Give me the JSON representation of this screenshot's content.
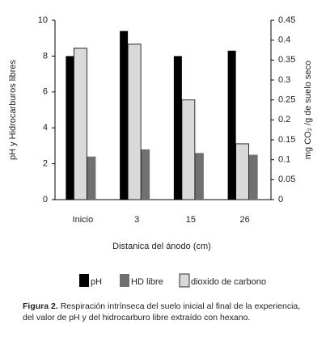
{
  "chart_data": {
    "type": "bar",
    "categories": [
      "Inicio",
      "3",
      "15",
      "26"
    ],
    "series": [
      {
        "name": "pH",
        "color": "#000000",
        "values": [
          8.0,
          9.4,
          8.0,
          8.3
        ]
      },
      {
        "name": "HD  libre",
        "color": "#707070",
        "values": [
          2.4,
          2.8,
          2.6,
          2.5
        ]
      },
      {
        "name": "dioxido de carbono",
        "color": "#d9d9d9",
        "axis": "y2",
        "values": [
          0.38,
          0.39,
          0.25,
          0.14
        ]
      }
    ],
    "ylim": [
      0,
      10
    ],
    "yticks": [
      0,
      2,
      4,
      6,
      8,
      10
    ],
    "y2lim": [
      0,
      0.45
    ],
    "y2ticks": [
      0,
      0.05,
      0.1,
      0.15,
      0.2,
      0.25,
      0.3,
      0.35,
      0.4,
      0.45
    ],
    "y_label": "pH y Hidrocarburos libres",
    "y2_label": "mg CO₂ /g de suelo seco",
    "x_label": "Distanica del ánodo (cm)"
  },
  "caption": {
    "label": "Figura 2.",
    "text": "Respiración intrínseca del suelo inicial al final de la experiencia, del valor de pH y del hidrocarburo libre extraído con hexano."
  }
}
